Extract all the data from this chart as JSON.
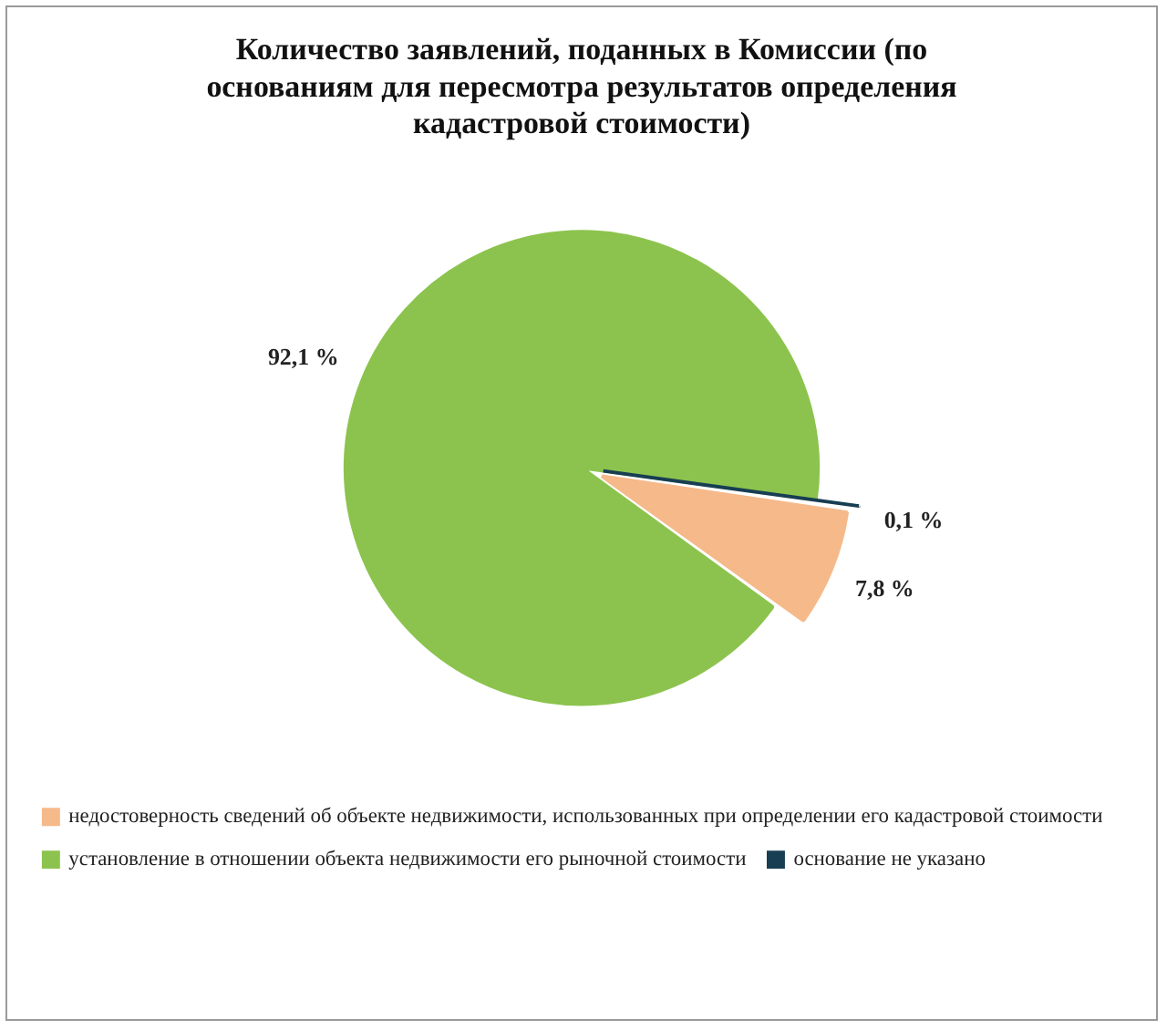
{
  "chart_data": {
    "type": "pie",
    "title": "Количество заявлений, поданных в Комиссии (по основаниям для пересмотра результатов определения кадастровой стоимости)",
    "categories": [
      "недостоверность сведений об объекте недвижимости, использованных при определении его кадастровой стоимости",
      "установление в отношении объекта недвижимости его рыночной стоимости",
      "основание не указано"
    ],
    "values": [
      7.8,
      92.1,
      0.1
    ],
    "colors": [
      "#f5b98a",
      "#8cc34e",
      "#173e52"
    ],
    "value_labels": [
      "7,8 %",
      "92,1 %",
      "0,1 %"
    ],
    "legend": "bottom"
  }
}
